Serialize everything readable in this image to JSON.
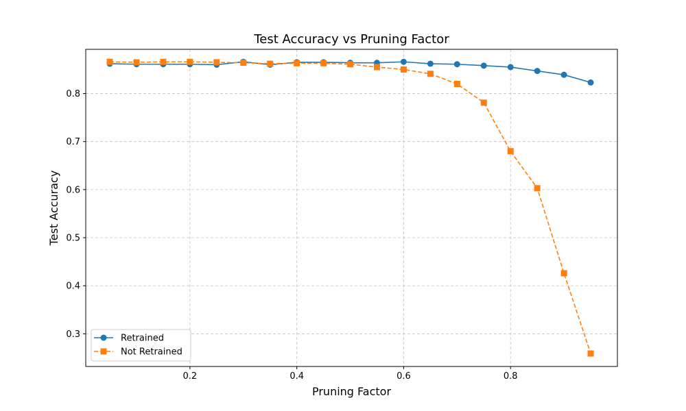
{
  "chart_data": {
    "type": "line",
    "title": "Test Accuracy vs Pruning Factor",
    "xlabel": "Pruning Factor",
    "ylabel": "Test Accuracy",
    "xlim": [
      0.005,
      1.0
    ],
    "ylim": [
      0.232,
      0.892
    ],
    "xticks": [
      0.2,
      0.4,
      0.6,
      0.8
    ],
    "yticks": [
      0.3,
      0.4,
      0.5,
      0.6,
      0.7,
      0.8
    ],
    "grid": true,
    "legend_position": "lower-left",
    "x": [
      0.05,
      0.1,
      0.15,
      0.2,
      0.25,
      0.3,
      0.35,
      0.4,
      0.45,
      0.5,
      0.55,
      0.6,
      0.65,
      0.7,
      0.75,
      0.8,
      0.85,
      0.9,
      0.95
    ],
    "series": [
      {
        "name": "Retrained",
        "color": "#1f77b4",
        "marker": "circle",
        "line_style": "solid",
        "values": [
          0.862,
          0.861,
          0.861,
          0.861,
          0.86,
          0.866,
          0.86,
          0.865,
          0.865,
          0.864,
          0.864,
          0.866,
          0.862,
          0.861,
          0.858,
          0.855,
          0.847,
          0.839,
          0.823
        ]
      },
      {
        "name": "Not Retrained",
        "color": "#ff7f0e",
        "marker": "square",
        "line_style": "dashed",
        "values": [
          0.866,
          0.865,
          0.866,
          0.866,
          0.865,
          0.864,
          0.862,
          0.863,
          0.863,
          0.861,
          0.855,
          0.85,
          0.841,
          0.82,
          0.781,
          0.68,
          0.603,
          0.426,
          0.259
        ]
      }
    ]
  }
}
